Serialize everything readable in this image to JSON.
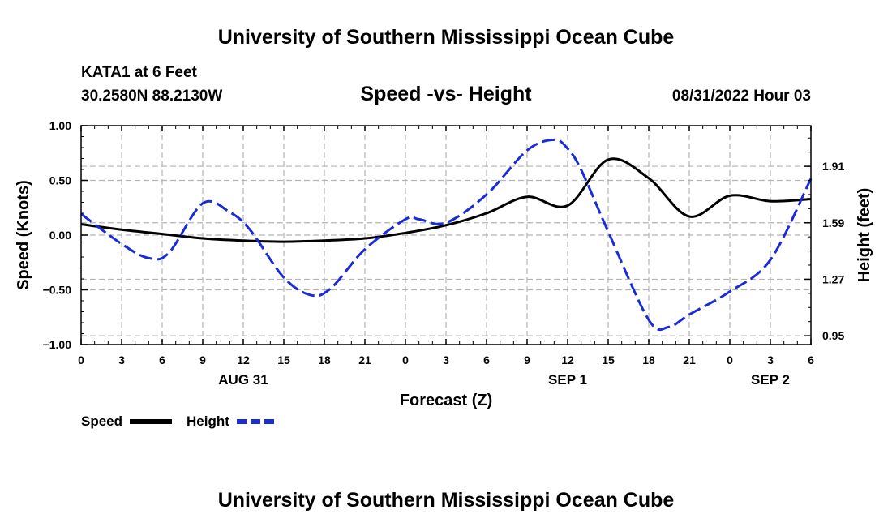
{
  "header": {
    "title": "University of Southern Mississippi Ocean Cube",
    "station": "KATA1 at 6 Feet",
    "coords": "30.2580N  88.2130W",
    "run": "08/31/2022 Hour 03",
    "footer_title": "University of Southern Mississippi Ocean Cube"
  },
  "chart_data": {
    "type": "line",
    "title": "Speed -vs- Height",
    "xlabel": "Forecast (Z)",
    "ylabel": "Speed (Knots)",
    "y2label": "Height (feet)",
    "x_range": [
      0,
      54
    ],
    "ylim": [
      -1.0,
      1.0
    ],
    "y2lim": [
      0.9,
      2.14
    ],
    "x_ticks": [
      0,
      3,
      6,
      9,
      12,
      15,
      18,
      21,
      24,
      27,
      30,
      33,
      36,
      39,
      42,
      45,
      48,
      51,
      54
    ],
    "x_tick_labels": [
      "0",
      "3",
      "6",
      "9",
      "12",
      "15",
      "18",
      "21",
      "0",
      "3",
      "6",
      "9",
      "12",
      "15",
      "18",
      "21",
      "0",
      "3",
      "6"
    ],
    "y_ticks": [
      1.0,
      0.5,
      0.0,
      -0.5,
      -1.0
    ],
    "y_tick_labels": [
      "1.00",
      "0.50",
      "0.00",
      "−0.50",
      "−1.00"
    ],
    "y2_ticks": [
      1.91,
      1.59,
      1.27,
      0.95
    ],
    "y2_tick_labels": [
      "1.91",
      "1.59",
      "1.27",
      "0.95"
    ],
    "date_labels": [
      {
        "x": 12,
        "label": "AUG 31"
      },
      {
        "x": 36,
        "label": "SEP 1"
      },
      {
        "x": 51,
        "label": "SEP 2"
      }
    ],
    "grid": true,
    "series": [
      {
        "name": "Speed",
        "axis": "left",
        "color": "#000000",
        "style": "solid",
        "x": [
          0,
          3,
          6,
          9,
          12,
          15,
          18,
          21,
          24,
          27,
          30,
          33,
          36,
          39,
          42,
          45,
          48,
          51,
          54
        ],
        "values": [
          0.1,
          0.05,
          0.01,
          -0.03,
          -0.05,
          -0.06,
          -0.05,
          -0.03,
          0.02,
          0.09,
          0.2,
          0.35,
          0.27,
          0.69,
          0.52,
          0.17,
          0.36,
          0.31,
          0.33
        ]
      },
      {
        "name": "Height",
        "axis": "right",
        "color": "#1a2cd6",
        "style": "dashed",
        "x": [
          0,
          3,
          5,
          6.5,
          9,
          11,
          12.5,
          15,
          17,
          18.5,
          21,
          24,
          25,
          27,
          30,
          33,
          35,
          36,
          37,
          39,
          42,
          43.5,
          45,
          48,
          51,
          54
        ],
        "values": [
          1.64,
          1.47,
          1.39,
          1.42,
          1.7,
          1.65,
          1.55,
          1.28,
          1.18,
          1.22,
          1.44,
          1.61,
          1.61,
          1.59,
          1.75,
          2.0,
          2.06,
          2.01,
          1.89,
          1.54,
          1.04,
          1.0,
          1.07,
          1.2,
          1.38,
          1.84
        ]
      }
    ],
    "legend": {
      "placement": "bottom-left",
      "entries": [
        {
          "name": "Speed",
          "color": "#000000",
          "style": "solid"
        },
        {
          "name": "Height",
          "color": "#1a2cd6",
          "style": "dashed"
        }
      ]
    }
  }
}
